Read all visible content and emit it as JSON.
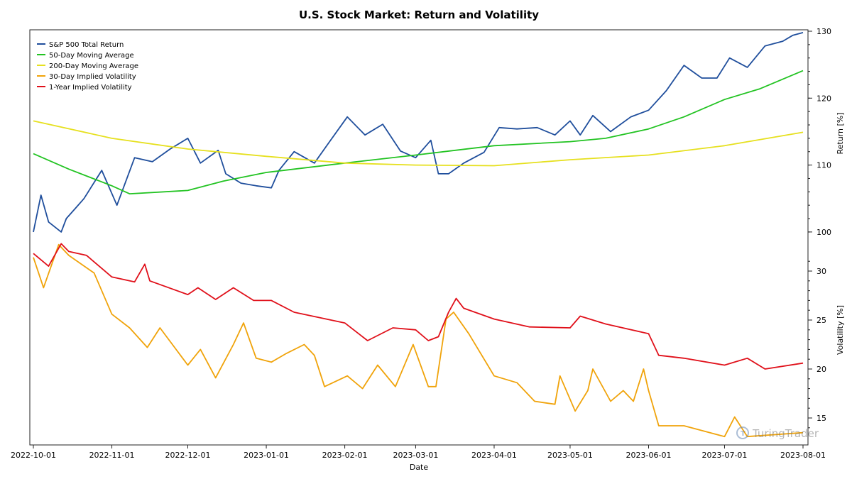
{
  "chart_data": {
    "type": "line",
    "title": "U.S. Stock Market: Return and Volatility",
    "xlabel": "Date",
    "xlim": [
      "2022-10-01",
      "2023-08-01"
    ],
    "x_ticks": [
      "2022-10-01",
      "2022-11-01",
      "2022-12-01",
      "2023-01-01",
      "2023-02-01",
      "2023-03-01",
      "2023-04-01",
      "2023-05-01",
      "2023-06-01",
      "2023-07-01",
      "2023-08-01"
    ],
    "panels": [
      {
        "ylabel": "Return [%]",
        "ylim": [
          100,
          130
        ],
        "y_ticks": [
          100,
          110,
          120,
          130
        ]
      },
      {
        "ylabel": "Volatility [%]",
        "ylim": [
          15,
          30
        ],
        "y_ticks": [
          15,
          20,
          25,
          30
        ]
      }
    ],
    "legend_position": "top-left",
    "grid": false,
    "watermark": "TuringTrader",
    "series": [
      {
        "name": "S&P 500 Total Return",
        "panel": 0,
        "color": "#1f4e9c",
        "points": [
          [
            "2022-10-01",
            100.0
          ],
          [
            "2022-10-04",
            105.5
          ],
          [
            "2022-10-07",
            101.5
          ],
          [
            "2022-10-12",
            100.0
          ],
          [
            "2022-10-14",
            102.0
          ],
          [
            "2022-10-18",
            103.7
          ],
          [
            "2022-10-21",
            105.0
          ],
          [
            "2022-10-28",
            109.2
          ],
          [
            "2022-11-03",
            104.0
          ],
          [
            "2022-11-10",
            111.1
          ],
          [
            "2022-11-17",
            110.5
          ],
          [
            "2022-11-24",
            112.4
          ],
          [
            "2022-12-01",
            114.0
          ],
          [
            "2022-12-06",
            110.3
          ],
          [
            "2022-12-13",
            112.2
          ],
          [
            "2022-12-16",
            108.7
          ],
          [
            "2022-12-22",
            107.3
          ],
          [
            "2022-12-28",
            106.9
          ],
          [
            "2023-01-03",
            106.6
          ],
          [
            "2023-01-06",
            109.2
          ],
          [
            "2023-01-12",
            112.0
          ],
          [
            "2023-01-20",
            110.3
          ],
          [
            "2023-01-26",
            113.5
          ],
          [
            "2023-02-02",
            117.2
          ],
          [
            "2023-02-09",
            114.5
          ],
          [
            "2023-02-16",
            116.1
          ],
          [
            "2023-02-23",
            112.1
          ],
          [
            "2023-03-01",
            111.1
          ],
          [
            "2023-03-07",
            113.7
          ],
          [
            "2023-03-10",
            108.7
          ],
          [
            "2023-03-14",
            108.7
          ],
          [
            "2023-03-20",
            110.3
          ],
          [
            "2023-03-28",
            111.9
          ],
          [
            "2023-04-03",
            115.6
          ],
          [
            "2023-04-10",
            115.4
          ],
          [
            "2023-04-18",
            115.6
          ],
          [
            "2023-04-25",
            114.5
          ],
          [
            "2023-05-01",
            116.6
          ],
          [
            "2023-05-05",
            114.5
          ],
          [
            "2023-05-10",
            117.4
          ],
          [
            "2023-05-17",
            115.0
          ],
          [
            "2023-05-25",
            117.2
          ],
          [
            "2023-06-01",
            118.2
          ],
          [
            "2023-06-08",
            121.1
          ],
          [
            "2023-06-15",
            124.9
          ],
          [
            "2023-06-22",
            123.0
          ],
          [
            "2023-06-28",
            123.0
          ],
          [
            "2023-07-03",
            126.0
          ],
          [
            "2023-07-10",
            124.6
          ],
          [
            "2023-07-17",
            127.8
          ],
          [
            "2023-07-24",
            128.5
          ],
          [
            "2023-07-28",
            129.4
          ],
          [
            "2023-08-01",
            129.8
          ]
        ]
      },
      {
        "name": "50-Day Moving Average",
        "panel": 0,
        "color": "#22c322",
        "points": [
          [
            "2022-10-01",
            111.7
          ],
          [
            "2022-10-15",
            109.4
          ],
          [
            "2022-11-01",
            106.9
          ],
          [
            "2022-11-08",
            105.7
          ],
          [
            "2022-12-01",
            106.2
          ],
          [
            "2022-12-15",
            107.6
          ],
          [
            "2023-01-01",
            108.9
          ],
          [
            "2023-02-01",
            110.3
          ],
          [
            "2023-03-01",
            111.5
          ],
          [
            "2023-04-01",
            112.9
          ],
          [
            "2023-05-01",
            113.5
          ],
          [
            "2023-05-15",
            114.0
          ],
          [
            "2023-06-01",
            115.4
          ],
          [
            "2023-06-15",
            117.2
          ],
          [
            "2023-07-01",
            119.8
          ],
          [
            "2023-07-15",
            121.4
          ],
          [
            "2023-08-01",
            124.1
          ]
        ]
      },
      {
        "name": "200-Day Moving Average",
        "panel": 0,
        "color": "#e6e01e",
        "points": [
          [
            "2022-10-01",
            116.6
          ],
          [
            "2022-11-01",
            114.0
          ],
          [
            "2022-12-01",
            112.4
          ],
          [
            "2023-01-01",
            111.3
          ],
          [
            "2023-02-01",
            110.3
          ],
          [
            "2023-03-01",
            110.0
          ],
          [
            "2023-04-01",
            109.9
          ],
          [
            "2023-05-01",
            110.8
          ],
          [
            "2023-06-01",
            111.5
          ],
          [
            "2023-07-01",
            112.9
          ],
          [
            "2023-08-01",
            114.9
          ]
        ]
      },
      {
        "name": "30-Day Implied Volatility",
        "panel": 1,
        "color": "#f0a30a",
        "points": [
          [
            "2022-10-01",
            31.4
          ],
          [
            "2022-10-05",
            28.3
          ],
          [
            "2022-10-11",
            32.7
          ],
          [
            "2022-10-15",
            31.6
          ],
          [
            "2022-10-25",
            29.8
          ],
          [
            "2022-11-01",
            25.6
          ],
          [
            "2022-11-08",
            24.2
          ],
          [
            "2022-11-15",
            22.2
          ],
          [
            "2022-11-20",
            24.2
          ],
          [
            "2022-12-01",
            20.4
          ],
          [
            "2022-12-06",
            22.0
          ],
          [
            "2022-12-12",
            19.1
          ],
          [
            "2022-12-19",
            22.5
          ],
          [
            "2022-12-23",
            24.7
          ],
          [
            "2022-12-28",
            21.1
          ],
          [
            "2023-01-03",
            20.7
          ],
          [
            "2023-01-09",
            21.6
          ],
          [
            "2023-01-16",
            22.5
          ],
          [
            "2023-01-20",
            21.4
          ],
          [
            "2023-01-24",
            18.2
          ],
          [
            "2023-02-02",
            19.3
          ],
          [
            "2023-02-08",
            18.0
          ],
          [
            "2023-02-14",
            20.4
          ],
          [
            "2023-02-21",
            18.2
          ],
          [
            "2023-02-28",
            22.5
          ],
          [
            "2023-03-06",
            18.2
          ],
          [
            "2023-03-09",
            18.2
          ],
          [
            "2023-03-13",
            25.1
          ],
          [
            "2023-03-16",
            25.8
          ],
          [
            "2023-03-22",
            23.6
          ],
          [
            "2023-04-01",
            19.3
          ],
          [
            "2023-04-10",
            18.6
          ],
          [
            "2023-04-17",
            16.7
          ],
          [
            "2023-04-25",
            16.4
          ],
          [
            "2023-04-27",
            19.3
          ],
          [
            "2023-05-03",
            15.7
          ],
          [
            "2023-05-08",
            17.8
          ],
          [
            "2023-05-10",
            20.0
          ],
          [
            "2023-05-17",
            16.7
          ],
          [
            "2023-05-22",
            17.8
          ],
          [
            "2023-05-26",
            16.7
          ],
          [
            "2023-05-30",
            20.0
          ],
          [
            "2023-06-01",
            17.8
          ],
          [
            "2023-06-05",
            14.2
          ],
          [
            "2023-06-15",
            14.2
          ],
          [
            "2023-07-01",
            13.1
          ],
          [
            "2023-07-05",
            15.1
          ],
          [
            "2023-07-10",
            13.1
          ],
          [
            "2023-08-01",
            13.5
          ]
        ]
      },
      {
        "name": "1-Year Implied Volatility",
        "panel": 1,
        "color": "#e0101a",
        "points": [
          [
            "2022-10-01",
            31.8
          ],
          [
            "2022-10-07",
            30.5
          ],
          [
            "2022-10-12",
            32.8
          ],
          [
            "2022-10-15",
            32.0
          ],
          [
            "2022-10-22",
            31.6
          ],
          [
            "2022-11-01",
            29.4
          ],
          [
            "2022-11-10",
            28.9
          ],
          [
            "2022-11-14",
            30.7
          ],
          [
            "2022-11-16",
            29.0
          ],
          [
            "2022-12-01",
            27.6
          ],
          [
            "2022-12-05",
            28.3
          ],
          [
            "2022-12-12",
            27.1
          ],
          [
            "2022-12-19",
            28.3
          ],
          [
            "2022-12-27",
            27.0
          ],
          [
            "2023-01-03",
            27.0
          ],
          [
            "2023-01-12",
            25.8
          ],
          [
            "2023-02-01",
            24.7
          ],
          [
            "2023-02-10",
            22.9
          ],
          [
            "2023-02-20",
            24.2
          ],
          [
            "2023-03-01",
            24.0
          ],
          [
            "2023-03-06",
            22.9
          ],
          [
            "2023-03-10",
            23.3
          ],
          [
            "2023-03-14",
            25.8
          ],
          [
            "2023-03-17",
            27.2
          ],
          [
            "2023-03-20",
            26.2
          ],
          [
            "2023-04-01",
            25.1
          ],
          [
            "2023-04-15",
            24.3
          ],
          [
            "2023-05-01",
            24.2
          ],
          [
            "2023-05-05",
            25.4
          ],
          [
            "2023-05-15",
            24.6
          ],
          [
            "2023-06-01",
            23.6
          ],
          [
            "2023-06-05",
            21.4
          ],
          [
            "2023-06-15",
            21.1
          ],
          [
            "2023-07-01",
            20.4
          ],
          [
            "2023-07-10",
            21.1
          ],
          [
            "2023-07-17",
            20.0
          ],
          [
            "2023-08-01",
            20.6
          ]
        ]
      }
    ]
  }
}
